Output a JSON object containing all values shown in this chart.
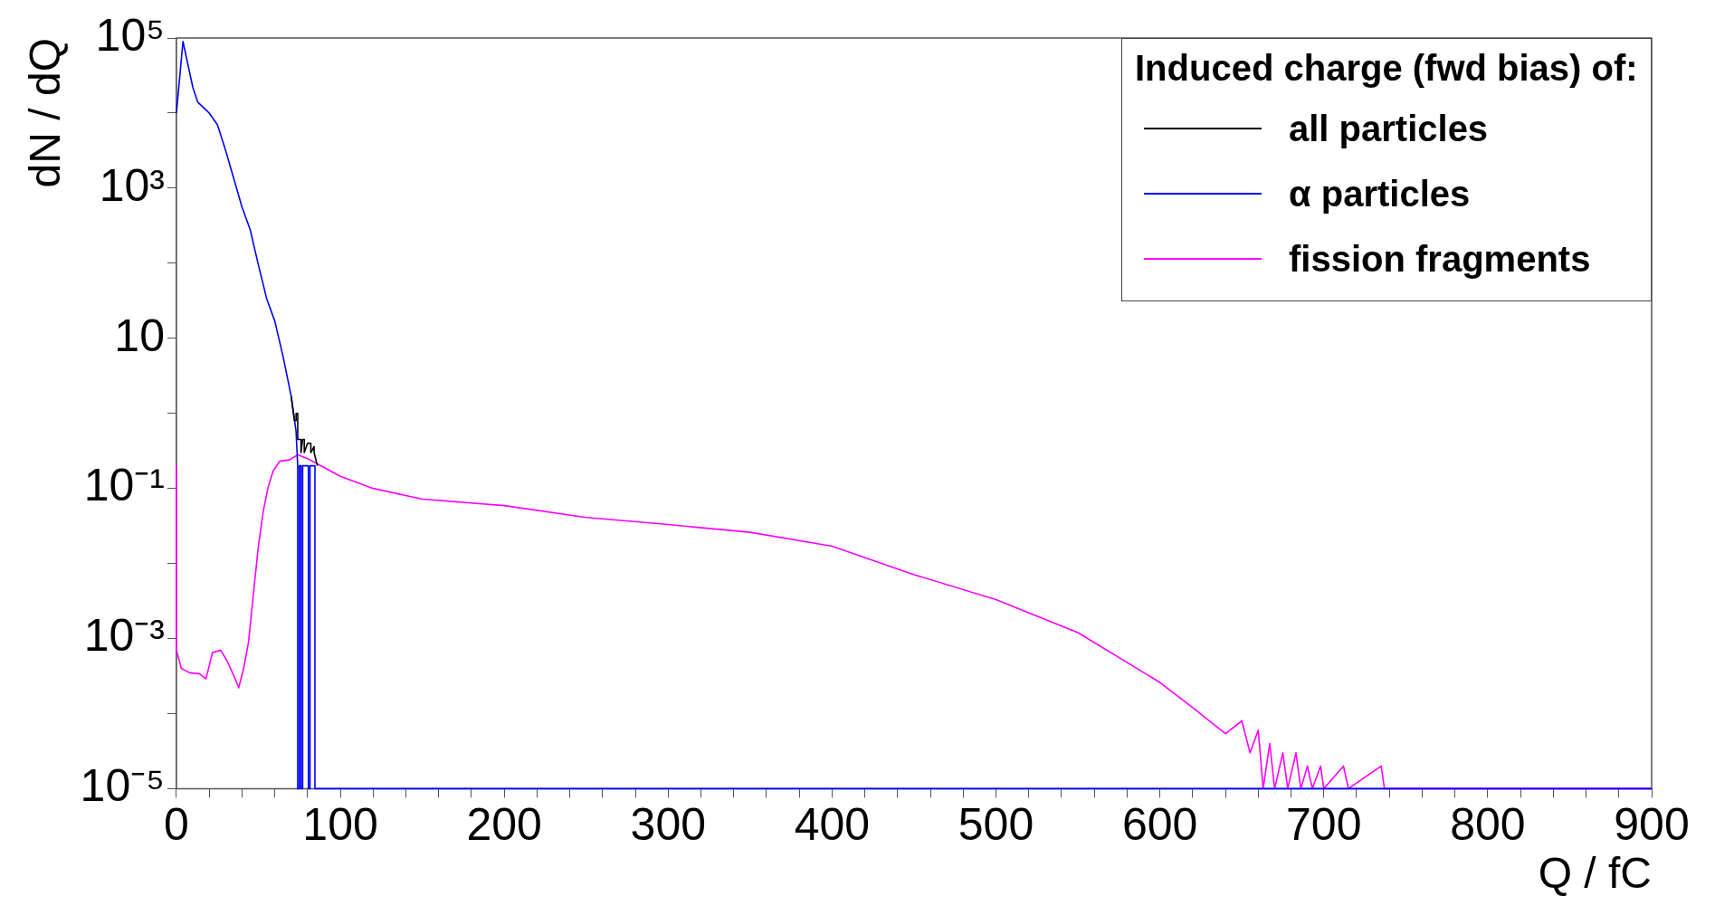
{
  "chart_data": {
    "type": "line",
    "xlabel": "Q / fC",
    "ylabel": "dN / dQ",
    "legend_title": "Induced charge (fwd bias) of:",
    "legend": "top right",
    "grid": false,
    "log": "y",
    "line_style": "solid",
    "marker": "none",
    "xlim": [
      0,
      900
    ],
    "ylim": [
      1e-05,
      100000
    ],
    "xticks": [
      0,
      {
        "value": 20,
        "label": null
      },
      {
        "value": 40,
        "label": null
      },
      {
        "value": 60,
        "label": null
      },
      {
        "value": 80,
        "label": null
      },
      100,
      {
        "value": 120,
        "label": null
      },
      {
        "value": 140,
        "label": null
      },
      {
        "value": 160,
        "label": null
      },
      {
        "value": 180,
        "label": null
      },
      200,
      {
        "value": 220,
        "label": null
      },
      {
        "value": 240,
        "label": null
      },
      {
        "value": 260,
        "label": null
      },
      {
        "value": 280,
        "label": null
      },
      300,
      {
        "value": 320,
        "label": null
      },
      {
        "value": 340,
        "label": null
      },
      {
        "value": 360,
        "label": null
      },
      {
        "value": 380,
        "label": null
      },
      400,
      {
        "value": 420,
        "label": null
      },
      {
        "value": 440,
        "label": null
      },
      {
        "value": 460,
        "label": null
      },
      {
        "value": 480,
        "label": null
      },
      500,
      {
        "value": 520,
        "label": null
      },
      {
        "value": 540,
        "label": null
      },
      {
        "value": 560,
        "label": null
      },
      {
        "value": 580,
        "label": null
      },
      600,
      {
        "value": 620,
        "label": null
      },
      {
        "value": 640,
        "label": null
      },
      {
        "value": 660,
        "label": null
      },
      {
        "value": 680,
        "label": null
      },
      700,
      {
        "value": 720,
        "label": null
      },
      {
        "value": 740,
        "label": null
      },
      {
        "value": 760,
        "label": null
      },
      {
        "value": 780,
        "label": null
      },
      800,
      {
        "value": 820,
        "label": null
      },
      {
        "value": 840,
        "label": null
      },
      {
        "value": 860,
        "label": null
      },
      {
        "value": 880,
        "label": null
      },
      900
    ],
    "yticks": [
      {
        "value": 1e-05,
        "label": "10⁻⁵"
      },
      {
        "value": 0.0001,
        "label": null
      },
      {
        "value": 0.001,
        "label": "10⁻³"
      },
      {
        "value": 0.01,
        "label": null
      },
      {
        "value": 0.1,
        "label": "10⁻¹"
      },
      {
        "value": 1,
        "label": null
      },
      10,
      {
        "value": 100,
        "label": null
      },
      {
        "value": 1000,
        "label": "10³"
      },
      {
        "value": 10000,
        "label": null
      },
      {
        "value": 100000,
        "label": "10⁵"
      }
    ],
    "series": [
      {
        "name": "all particles",
        "color": "#000000",
        "x": [
          70,
          72,
          73,
          73,
          74,
          74,
          75,
          76,
          76,
          77,
          78,
          78,
          80,
          82,
          82,
          84,
          84,
          86
        ],
        "values": [
          1.7,
          0.8,
          0.8,
          1,
          1,
          0.45,
          0.45,
          0.45,
          0.3,
          0.45,
          0.45,
          0.3,
          0.4,
          0.4,
          0.3,
          0.36,
          0.3,
          0.2
        ]
      },
      {
        "name": "α particles",
        "color": "#0000ff",
        "x": [
          0,
          4,
          10,
          13,
          20,
          25,
          30,
          40,
          45,
          50,
          55,
          60,
          65,
          70,
          73,
          74,
          74,
          75,
          75,
          76,
          76,
          77,
          77,
          80.5,
          80.5,
          81.5,
          81.5,
          84.5,
          84.5,
          85.5,
          85.5,
          900
        ],
        "values": [
          10000,
          90000,
          22000,
          14000,
          10000,
          7000,
          3200,
          560,
          280,
          95,
          34,
          17,
          5.8,
          1.7,
          0.57,
          0.2,
          1e-05,
          1e-05,
          0.2,
          0.2,
          1e-05,
          1e-05,
          0.2,
          0.2,
          1e-05,
          1e-05,
          0.2,
          0.2,
          1e-05,
          1e-05,
          1e-05,
          1e-05
        ]
      },
      {
        "name": "fission fragments",
        "color": "#ff00ff",
        "x": [
          0,
          0,
          3,
          8,
          14,
          18,
          22,
          27,
          31,
          35,
          38,
          41,
          44,
          47,
          50,
          53,
          56,
          59,
          63,
          69,
          74,
          80,
          90,
          100,
          120,
          150,
          200,
          250,
          300,
          350,
          400,
          450,
          500,
          550,
          600,
          620,
          640,
          650,
          655,
          660,
          663,
          667,
          670,
          675,
          678,
          683,
          686,
          690,
          693,
          698,
          700,
          712,
          715,
          735,
          737,
          900
        ],
        "values": [
          0.2,
          0.0007,
          0.0004,
          0.00035,
          0.00034,
          0.00029,
          0.00065,
          0.0007,
          0.0005,
          0.00032,
          0.00022,
          0.0004,
          0.0009,
          0.004,
          0.017,
          0.05,
          0.105,
          0.17,
          0.23,
          0.24,
          0.28,
          0.25,
          0.19,
          0.145,
          0.1,
          0.072,
          0.059,
          0.041,
          0.033,
          0.026,
          0.017,
          0.0071,
          0.0033,
          0.0012,
          0.00026,
          0.00012,
          5.4e-05,
          8e-05,
          3e-05,
          6e-05,
          1e-05,
          4e-05,
          1e-05,
          3e-05,
          1e-05,
          3e-05,
          1e-05,
          2e-05,
          1e-05,
          2e-05,
          1e-05,
          2e-05,
          1e-05,
          2e-05,
          1e-05,
          1e-05
        ]
      }
    ]
  }
}
